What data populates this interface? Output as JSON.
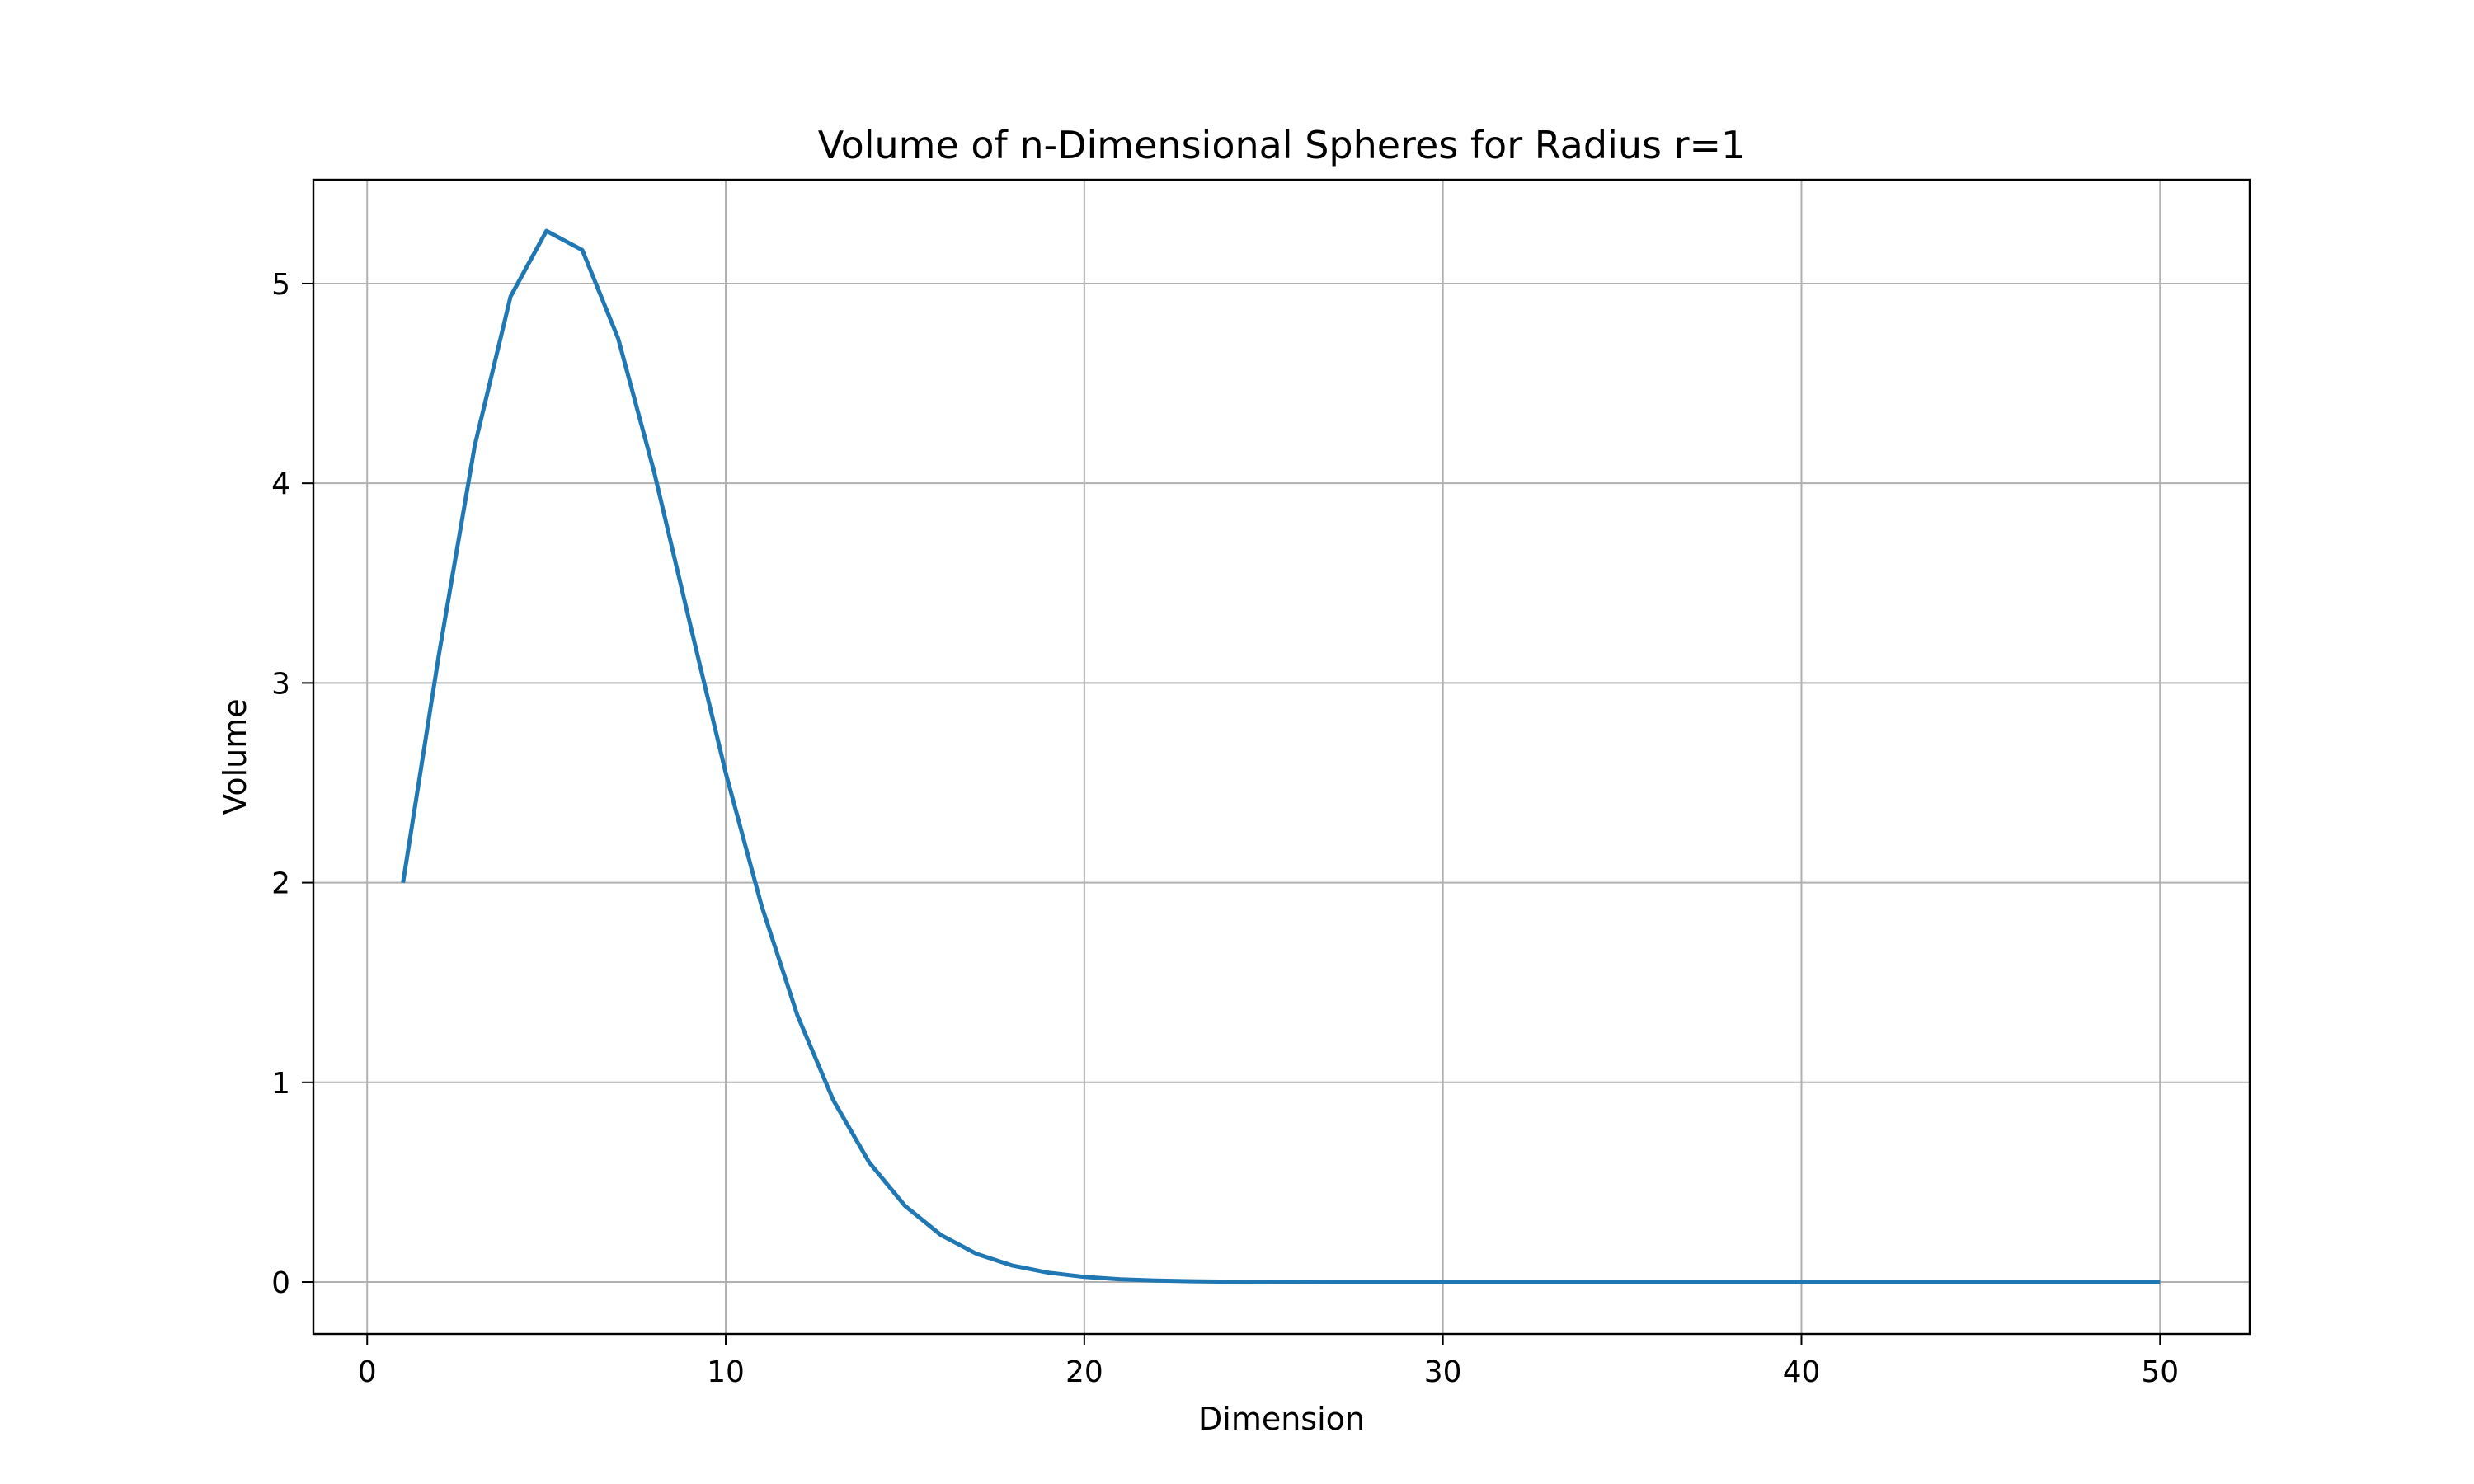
{
  "chart_data": {
    "type": "line",
    "title": "Volume of n-Dimensional Spheres for Radius r=1",
    "xlabel": "Dimension",
    "ylabel": "Volume",
    "xlim": [
      -1.5,
      52.5
    ],
    "ylim": [
      -0.26,
      5.52
    ],
    "xticks": [
      0,
      10,
      20,
      30,
      40,
      50
    ],
    "yticks": [
      0,
      1,
      2,
      3,
      4,
      5
    ],
    "grid": true,
    "legend": "none",
    "series": [
      {
        "color": "#1f77b4",
        "x": [
          1,
          2,
          3,
          4,
          5,
          6,
          7,
          8,
          9,
          10,
          11,
          12,
          13,
          14,
          15,
          16,
          17,
          18,
          19,
          20,
          21,
          22,
          23,
          24,
          25,
          26,
          27,
          28,
          29,
          30,
          31,
          32,
          33,
          34,
          35,
          36,
          37,
          38,
          39,
          40,
          41,
          42,
          43,
          44,
          45,
          46,
          47,
          48,
          49,
          50
        ],
        "y": [
          2.0,
          3.1416,
          4.1888,
          4.9348,
          5.2638,
          5.1677,
          4.7248,
          4.0587,
          3.2985,
          2.5502,
          1.8841,
          1.3353,
          0.9106,
          0.5993,
          0.3814,
          0.2353,
          0.1409,
          0.0821,
          0.0466,
          0.0258,
          0.0139,
          0.0073,
          0.0038,
          0.0019,
          0.001,
          0.0005,
          0.0002,
          0.0001,
          5e-05,
          2e-05,
          1e-05,
          0.0,
          0.0,
          0.0,
          0.0,
          0.0,
          0.0,
          0.0,
          0.0,
          0.0,
          0.0,
          0.0,
          0.0,
          0.0,
          0.0,
          0.0,
          0.0,
          0.0,
          0.0,
          0.0
        ]
      }
    ]
  }
}
